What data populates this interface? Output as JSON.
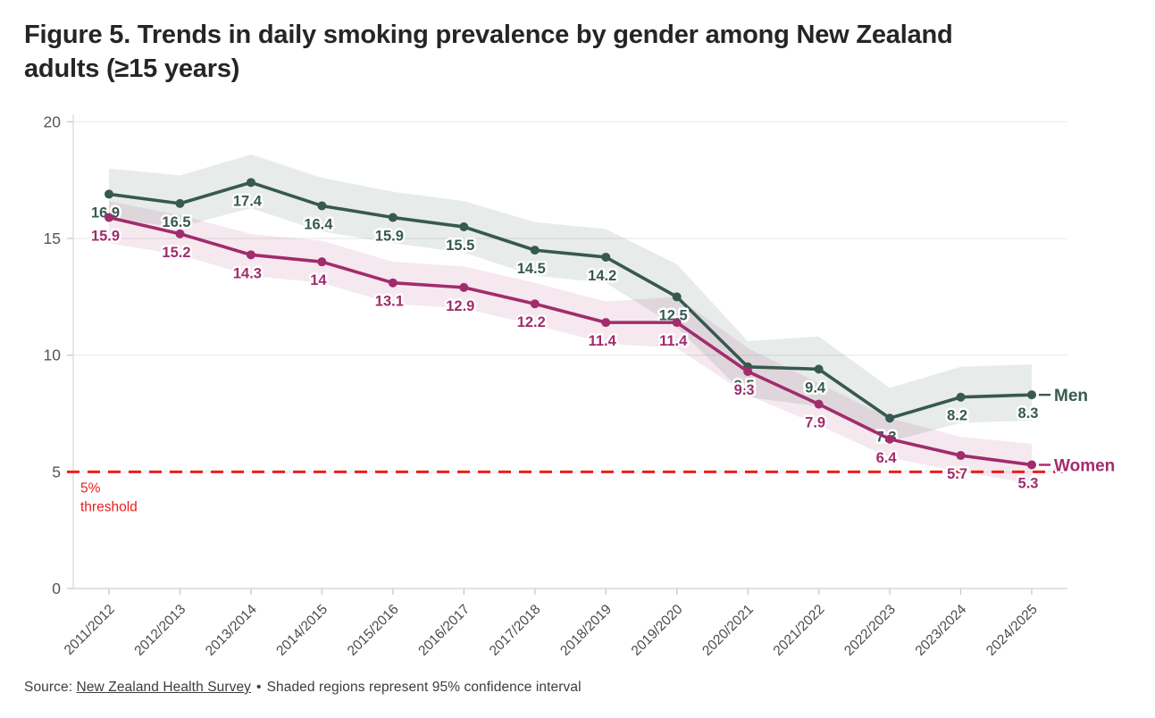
{
  "figure": {
    "title": "Figure 5. Trends in daily smoking prevalence by gender among New Zealand adults (≥15 years)",
    "source_prefix": "Source:",
    "source_link": "New Zealand Health Survey",
    "source_separator": "•",
    "source_note": "Shaded regions represent 95% confidence interval"
  },
  "chart_data": {
    "type": "line",
    "title": "Figure 5. Trends in daily smoking prevalence by gender among New Zealand adults (≥15 years)",
    "categories": [
      "2011/2012",
      "2012/2013",
      "2013/2014",
      "2014/2015",
      "2015/2016",
      "2016/2017",
      "2017/2018",
      "2018/2019",
      "2019/2020",
      "2020/2021",
      "2021/2022",
      "2022/2023",
      "2023/2024",
      "2024/2025"
    ],
    "series": [
      {
        "name": "Men",
        "color": "#37594f",
        "band_color": "rgba(55,90,81,0.12)",
        "values": [
          16.9,
          16.5,
          17.4,
          16.4,
          15.9,
          15.5,
          14.5,
          14.2,
          12.5,
          9.5,
          9.4,
          7.3,
          8.2,
          8.3
        ],
        "ci_upper": [
          18.0,
          17.7,
          18.6,
          17.6,
          17.0,
          16.6,
          15.7,
          15.4,
          13.9,
          10.6,
          10.8,
          8.6,
          9.5,
          9.6
        ],
        "ci_lower": [
          15.8,
          15.5,
          16.3,
          15.3,
          14.8,
          14.4,
          13.4,
          13.1,
          11.2,
          8.2,
          7.8,
          6.3,
          7.1,
          7.2
        ]
      },
      {
        "name": "Women",
        "color": "#a12c6c",
        "band_color": "rgba(166,44,108,0.11)",
        "values": [
          15.9,
          15.2,
          14.3,
          14,
          13.1,
          12.9,
          12.2,
          11.4,
          11.4,
          9.3,
          7.9,
          6.4,
          5.7,
          5.3
        ],
        "ci_upper": [
          16.6,
          16.0,
          15.2,
          14.9,
          14.0,
          13.8,
          13.1,
          12.3,
          12.5,
          10.3,
          8.8,
          7.3,
          6.5,
          6.2
        ],
        "ci_lower": [
          14.8,
          14.3,
          13.4,
          13.1,
          12.2,
          12.0,
          11.3,
          10.5,
          10.3,
          8.3,
          7.0,
          5.6,
          5.0,
          4.5
        ]
      }
    ],
    "ylim": [
      0,
      20
    ],
    "yticks": [
      0,
      5,
      10,
      15,
      20
    ],
    "xlabel": "",
    "ylabel": "",
    "grid": true,
    "legend_position": "line-end-right",
    "threshold": {
      "value": 5,
      "label_line1": "5%",
      "label_line2": "threshold",
      "color": "#ee1c1c"
    },
    "axis_color": "#d9d9d9",
    "grid_color": "#ececec",
    "tick_label_color": "#555555",
    "x_label_color": "#4a4a4a"
  }
}
